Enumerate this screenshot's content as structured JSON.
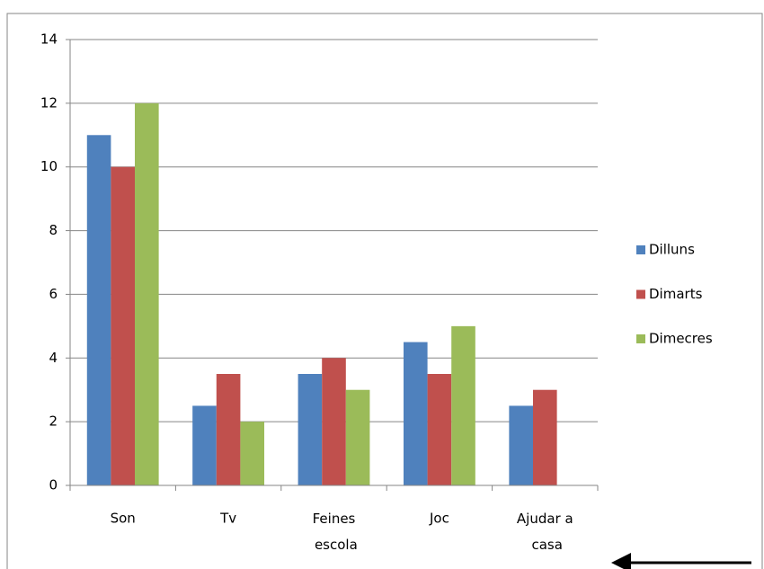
{
  "chart_data": {
    "type": "bar",
    "categories": [
      "Son",
      "Tv",
      "Feines escola",
      "Joc",
      "Ajudar a casa"
    ],
    "series": [
      {
        "name": "Dilluns",
        "color": "#4f81bd",
        "values": [
          11,
          2.5,
          3.5,
          4.5,
          2.5
        ]
      },
      {
        "name": "Dimarts",
        "color": "#c0504d",
        "values": [
          10,
          3.5,
          4,
          3.5,
          3
        ]
      },
      {
        "name": "Dimecres",
        "color": "#9bbb59",
        "values": [
          12,
          2,
          3,
          5,
          null
        ]
      }
    ],
    "ylim": [
      0,
      14
    ],
    "yticks": [
      0,
      2,
      4,
      6,
      8,
      10,
      12,
      14
    ],
    "grid": true,
    "legend": "right"
  }
}
